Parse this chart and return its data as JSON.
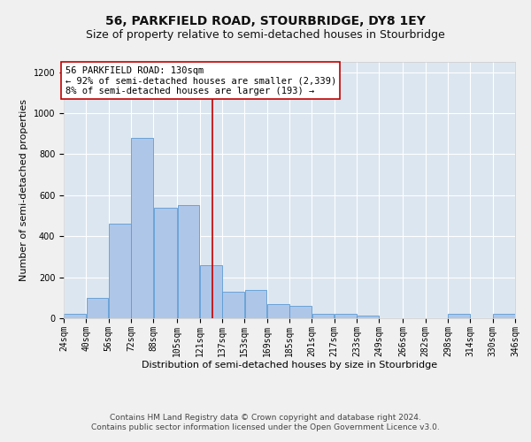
{
  "title": "56, PARKFIELD ROAD, STOURBRIDGE, DY8 1EY",
  "subtitle": "Size of property relative to semi-detached houses in Stourbridge",
  "xlabel": "Distribution of semi-detached houses by size in Stourbridge",
  "ylabel": "Number of semi-detached properties",
  "footer_line1": "Contains HM Land Registry data © Crown copyright and database right 2024.",
  "footer_line2": "Contains public sector information licensed under the Open Government Licence v3.0.",
  "annotation_title": "56 PARKFIELD ROAD: 130sqm",
  "annotation_line2": "← 92% of semi-detached houses are smaller (2,339)",
  "annotation_line3": "8% of semi-detached houses are larger (193) →",
  "property_size": 130,
  "bar_left_edges": [
    24,
    40,
    56,
    72,
    88,
    105,
    121,
    137,
    153,
    169,
    185,
    201,
    217,
    233,
    249,
    266,
    282,
    298,
    314,
    330
  ],
  "bar_widths": [
    16,
    16,
    16,
    16,
    17,
    16,
    16,
    16,
    16,
    16,
    16,
    16,
    16,
    16,
    17,
    16,
    16,
    16,
    16,
    16
  ],
  "bar_heights": [
    20,
    100,
    460,
    880,
    540,
    550,
    260,
    130,
    140,
    70,
    60,
    20,
    20,
    15,
    0,
    0,
    0,
    20,
    0,
    20
  ],
  "tick_labels": [
    "24sqm",
    "40sqm",
    "56sqm",
    "72sqm",
    "88sqm",
    "105sqm",
    "121sqm",
    "137sqm",
    "153sqm",
    "169sqm",
    "185sqm",
    "201sqm",
    "217sqm",
    "233sqm",
    "249sqm",
    "266sqm",
    "282sqm",
    "298sqm",
    "314sqm",
    "330sqm",
    "346sqm"
  ],
  "bar_color": "#aec6e8",
  "bar_edge_color": "#5b9bd5",
  "vline_color": "#c00000",
  "vline_x": 130,
  "box_color": "#c00000",
  "plot_bg_color": "#dce6f0",
  "fig_bg_color": "#f0f0f0",
  "ylim": [
    0,
    1250
  ],
  "yticks": [
    0,
    200,
    400,
    600,
    800,
    1000,
    1200
  ],
  "grid_color": "#ffffff",
  "title_fontsize": 10,
  "subtitle_fontsize": 9,
  "axis_label_fontsize": 8,
  "tick_fontsize": 7,
  "annotation_fontsize": 7.5,
  "footer_fontsize": 6.5
}
